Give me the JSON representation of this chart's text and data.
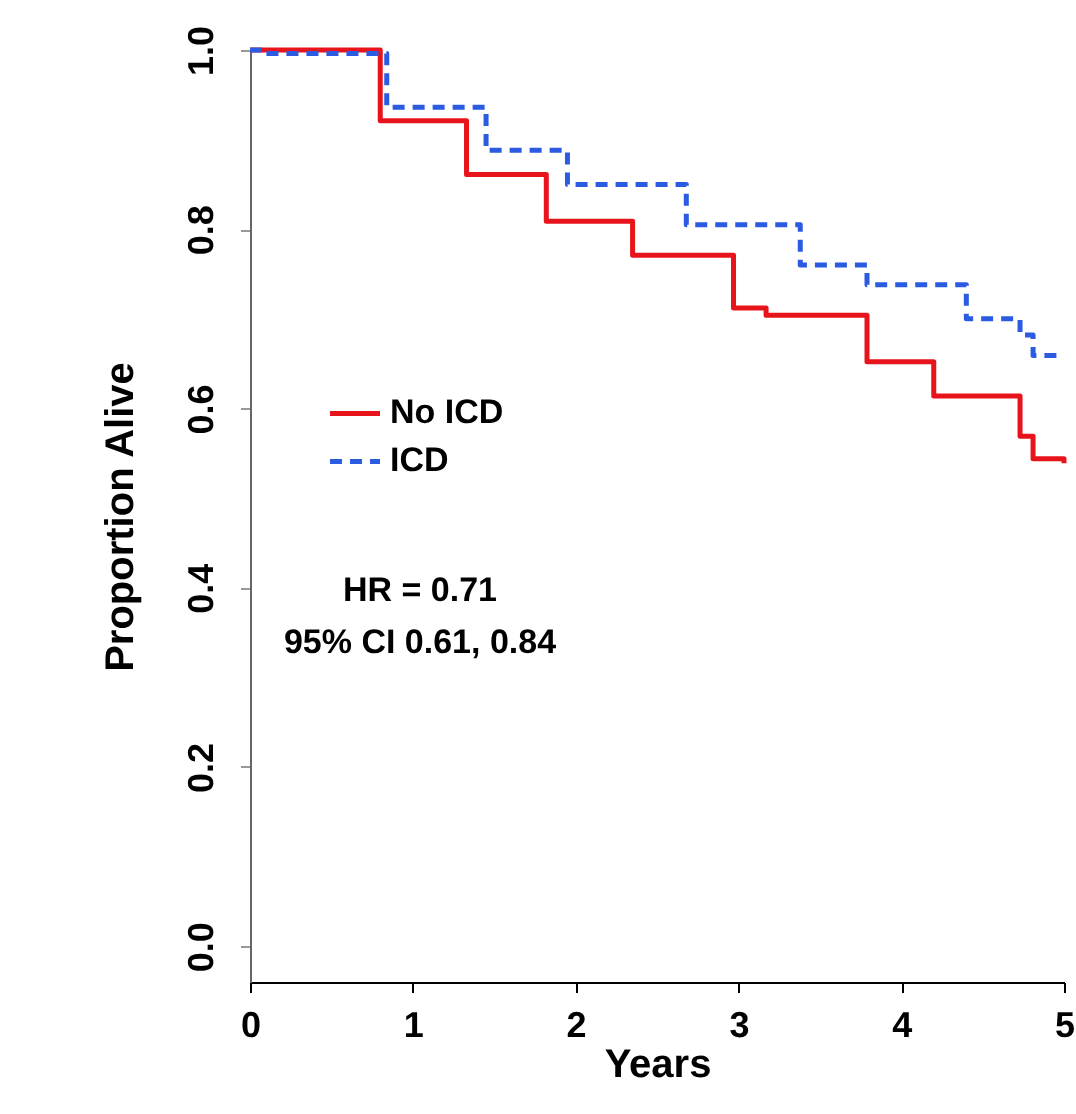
{
  "chart_data": {
    "type": "step",
    "xlabel": "Years",
    "ylabel": "Proportion Alive",
    "xlim": [
      0,
      5
    ],
    "xticks": [
      0,
      1,
      2,
      3,
      4,
      5
    ],
    "ylim": [
      -0.04,
      1.0
    ],
    "yticks": [
      {
        "value": 0,
        "label": "0.0"
      },
      0.2,
      0.4,
      0.6,
      0.8,
      {
        "value": 1,
        "label": "1.0"
      }
    ],
    "grid": false,
    "legend": "left",
    "marker": "none",
    "annotations": [
      "HR = 0.71",
      "95% CI 0.61, 0.84"
    ],
    "series": [
      {
        "name": "No ICD",
        "color": "#e8141c",
        "line_style": "solid",
        "x": [
          0,
          0.8,
          1.33,
          1.82,
          2.35,
          2.97,
          3.17,
          3.79,
          4.2,
          4.73,
          4.81,
          5.0
        ],
        "values": [
          1.0,
          0.921,
          0.861,
          0.809,
          0.771,
          0.712,
          0.704,
          0.652,
          0.614,
          0.569,
          0.544,
          0.539
        ]
      },
      {
        "name": "ICD",
        "color": "#2a5be0",
        "line_style": "dashed",
        "x": [
          0,
          0.1,
          0.84,
          1.45,
          1.95,
          2.68,
          3.38,
          3.79,
          4.4,
          4.73,
          4.81,
          5.0
        ],
        "values": [
          1.0,
          0.996,
          0.936,
          0.888,
          0.85,
          0.805,
          0.76,
          0.738,
          0.7,
          0.682,
          0.659,
          0.659
        ]
      }
    ]
  }
}
